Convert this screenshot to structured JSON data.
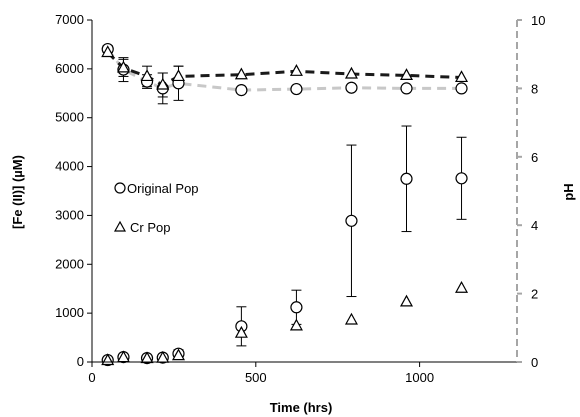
{
  "chart_data": {
    "type": "scatter",
    "xlabel": "Time (hrs)",
    "ylabel": "[Fe (II)] (µM)",
    "y2label": "pH",
    "xlim": [
      0,
      1200
    ],
    "ylim": [
      0,
      7000
    ],
    "y2lim": [
      0,
      10
    ],
    "x_ticks": [
      0,
      500,
      1000
    ],
    "y_ticks": [
      0,
      1000,
      2000,
      3000,
      4000,
      5000,
      6000,
      7000
    ],
    "y2_ticks": [
      0,
      2,
      4,
      6,
      8,
      10
    ],
    "legend_position": "left-middle",
    "series": [
      {
        "name": "Original Pop",
        "marker": "circle",
        "axis": "left",
        "points": [
          {
            "x": 48,
            "y": 40,
            "err": 0
          },
          {
            "x": 96,
            "y": 100,
            "err": 0
          },
          {
            "x": 168,
            "y": 80,
            "err": 0
          },
          {
            "x": 216,
            "y": 90,
            "err": 0
          },
          {
            "x": 264,
            "y": 170,
            "err": 80
          },
          {
            "x": 456,
            "y": 730,
            "err": 400
          },
          {
            "x": 624,
            "y": 1120,
            "err": 350
          },
          {
            "x": 792,
            "y": 2890,
            "err": 1550
          },
          {
            "x": 960,
            "y": 3750,
            "err": 1080
          },
          {
            "x": 1128,
            "y": 3760,
            "err": 840
          }
        ]
      },
      {
        "name": "Cr Pop",
        "marker": "triangle",
        "axis": "left",
        "points": [
          {
            "x": 48,
            "y": 30,
            "err": 0
          },
          {
            "x": 96,
            "y": 90,
            "err": 0
          },
          {
            "x": 168,
            "y": 70,
            "err": 0
          },
          {
            "x": 216,
            "y": 80,
            "err": 0
          },
          {
            "x": 264,
            "y": 130,
            "err": 0
          },
          {
            "x": 456,
            "y": 590,
            "err": 0
          },
          {
            "x": 624,
            "y": 740,
            "err": 0
          },
          {
            "x": 792,
            "y": 860,
            "err": 0
          },
          {
            "x": 960,
            "y": 1230,
            "err": 0
          },
          {
            "x": 1128,
            "y": 1510,
            "err": 0
          }
        ]
      },
      {
        "name": "Original Pop pH",
        "marker": "circle",
        "axis": "right",
        "line_color": "#c8c8c8",
        "points": [
          {
            "x": 48,
            "y": 9.15,
            "err": 0.1
          },
          {
            "x": 96,
            "y": 8.55,
            "err": 0.35
          },
          {
            "x": 168,
            "y": 8.2,
            "err": 0.2
          },
          {
            "x": 216,
            "y": 8.0,
            "err": 0.45
          },
          {
            "x": 264,
            "y": 8.15,
            "err": 0.5
          },
          {
            "x": 456,
            "y": 7.95,
            "err": 0
          },
          {
            "x": 624,
            "y": 7.98,
            "err": 0
          },
          {
            "x": 792,
            "y": 8.02,
            "err": 0
          },
          {
            "x": 960,
            "y": 8.0,
            "err": 0
          },
          {
            "x": 1128,
            "y": 8.0,
            "err": 0
          }
        ]
      },
      {
        "name": "Cr Pop pH",
        "marker": "triangle",
        "axis": "right",
        "line_color": "#1a1a1a",
        "points": [
          {
            "x": 48,
            "y": 9.05,
            "err": 0.1
          },
          {
            "x": 96,
            "y": 8.6,
            "err": 0.25
          },
          {
            "x": 168,
            "y": 8.35,
            "err": 0.3
          },
          {
            "x": 216,
            "y": 8.1,
            "err": 0.35
          },
          {
            "x": 264,
            "y": 8.35,
            "err": 0.3
          },
          {
            "x": 456,
            "y": 8.4,
            "err": 0
          },
          {
            "x": 624,
            "y": 8.5,
            "err": 0
          },
          {
            "x": 792,
            "y": 8.42,
            "err": 0
          },
          {
            "x": 960,
            "y": 8.38,
            "err": 0
          },
          {
            "x": 1128,
            "y": 8.32,
            "err": 0
          }
        ]
      }
    ],
    "legend": [
      {
        "marker": "circle",
        "label": "Original Pop"
      },
      {
        "marker": "triangle",
        "label": "Cr Pop"
      }
    ],
    "colors": {
      "axis": "#000000",
      "right_axis": "#a6a6a6",
      "marker": "#000000",
      "ph_original_line": "#c8c8c8",
      "ph_cr_line": "#1a1a1a"
    }
  }
}
